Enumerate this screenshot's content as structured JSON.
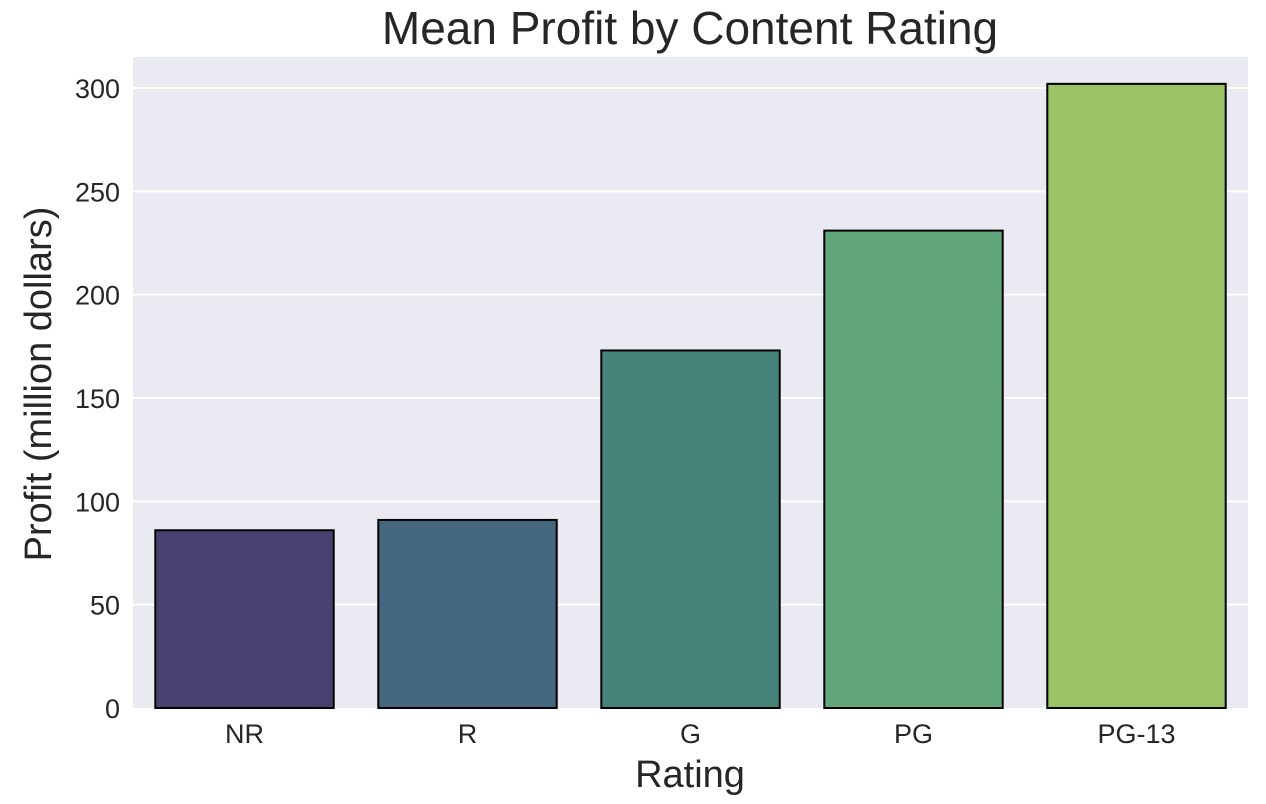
{
  "chart_data": {
    "type": "bar",
    "title": "Mean Profit by Content Rating",
    "xlabel": "Rating",
    "ylabel": "Profit (million dollars)",
    "categories": [
      "NR",
      "R",
      "G",
      "PG",
      "PG-13"
    ],
    "values": [
      86,
      91,
      173,
      231,
      302
    ],
    "ylim": [
      0,
      315
    ],
    "yticks": [
      0,
      50,
      100,
      150,
      200,
      250,
      300
    ],
    "colors": [
      "#4a4171",
      "#45677f",
      "#46837b",
      "#62a77b",
      "#9ac365"
    ],
    "grid": true,
    "background": "#eaeaf2",
    "legend": "none"
  }
}
